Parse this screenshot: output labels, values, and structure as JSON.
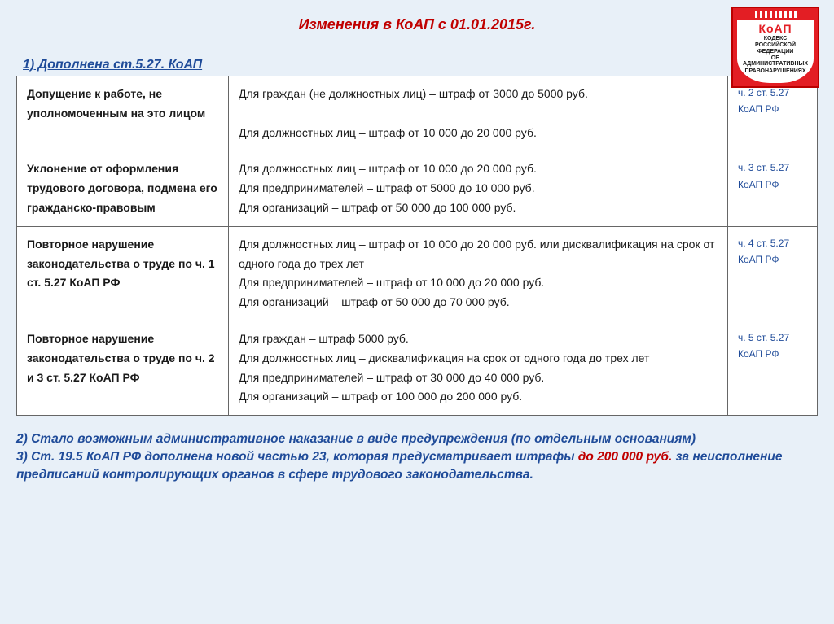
{
  "title": "Изменения в КоАП с 01.01.2015г.",
  "subtitle": "1) Дополнена ст.5.27. КоАП",
  "logo": {
    "name": "КоАП",
    "line1": "КОДЕКС",
    "line2": "РОССИЙСКОЙ ФЕДЕРАЦИИ",
    "line3": "ОБ АДМИНИСТРАТИВНЫХ",
    "line4": "ПРАВОНАРУШЕНИЯХ"
  },
  "rows": [
    {
      "c1": "Допущение к работе, не уполномоченным на это лицом",
      "c2": "Для граждан (не должностных лиц) – штраф от 3000 до 5000 руб.\n\nДля должностных лиц – штраф от 10 000 до 20 000 руб.",
      "c3": "ч. 2 ст. 5.27 КоАП РФ"
    },
    {
      "c1": "Уклонение от оформления трудового договора, подмена его гражданско-правовым",
      "c2": "Для должностных лиц – штраф от 10 000 до 20 000 руб.\nДля предпринимателей – штраф от 5000 до 10 000 руб.\nДля организаций – штраф от 50 000 до 100 000 руб.",
      "c3": "ч. 3 ст. 5.27 КоАП РФ"
    },
    {
      "c1": "Повторное нарушение законодательства о труде по ч. 1 ст. 5.27 КоАП РФ",
      "c2": "Для должностных лиц – штраф от 10 000 до 20 000 руб. или дисквалификация на срок от одного года до трех лет\nДля предпринимателей – штраф от 10 000 до 20 000 руб.\nДля организаций – штраф от 50 000 до 70 000 руб.",
      "c3": "ч. 4 ст. 5.27 КоАП РФ"
    },
    {
      "c1": "Повторное нарушение законодательства о труде по ч. 2 и 3 ст. 5.27 КоАП РФ",
      "c2": "Для граждан – штраф 5000 руб.\nДля должностных лиц – дисквалификация на срок от одного года до трех лет\nДля предпринимателей – штраф от 30 000 до 40 000 руб.\nДля организаций – штраф от 100 000 до 200 000 руб.",
      "c3": "ч. 5 ст. 5.27 КоАП РФ"
    }
  ],
  "footer": {
    "note2_a": "2) Стало возможным административное наказание в виде предупреждения (по отдельным основаниям)",
    "note3_a": "3) Ст. 19.5 КоАП РФ дополнена новой частью 23, которая предусматривает штрафы ",
    "note3_red": "до 200 000 руб.",
    "note3_b": " за неисполнение предписаний контролирующих органов в сфере трудового законодательства."
  }
}
